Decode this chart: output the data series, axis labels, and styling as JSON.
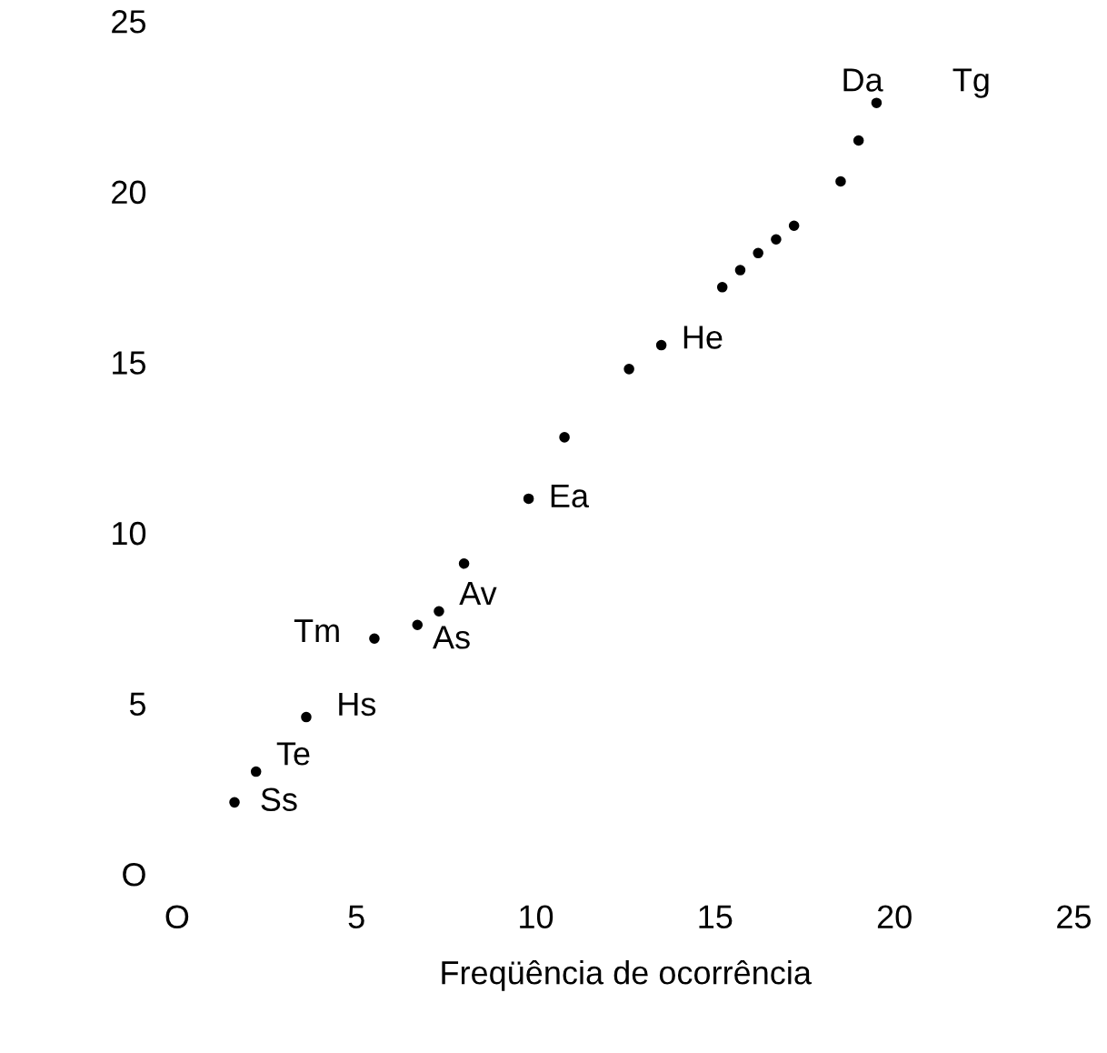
{
  "chart_data": {
    "type": "scatter",
    "xlabel": "Freqüência de ocorrência",
    "xlim": [
      0,
      25
    ],
    "ylim": [
      0,
      25
    ],
    "xticks": [
      {
        "value": 0,
        "label": "O"
      },
      5,
      10,
      15,
      20,
      25
    ],
    "yticks": [
      {
        "value": 0,
        "label": "O"
      },
      5,
      10,
      15,
      20,
      25
    ],
    "grid": false,
    "marker": "circle",
    "series": [
      {
        "color": "#000000",
        "x": [
          1.6,
          2.2,
          3.6,
          5.5,
          6.7,
          7.3,
          8.0,
          9.8,
          10.8,
          12.6,
          13.5,
          15.2,
          15.7,
          16.2,
          16.7,
          17.2,
          18.5,
          19.0,
          19.5
        ],
        "values": [
          2.1,
          3.0,
          4.6,
          6.9,
          7.3,
          7.7,
          9.1,
          11.0,
          12.8,
          14.8,
          15.5,
          17.2,
          17.7,
          18.2,
          18.6,
          19.0,
          20.3,
          21.5,
          22.6
        ]
      }
    ],
    "annotations": [
      {
        "text": "Ss",
        "x": 1.6,
        "y": 2.1
      },
      {
        "text": "Te",
        "x": 2.2,
        "y": 3.0
      },
      {
        "text": "Hs",
        "x": 3.6,
        "y": 4.6
      },
      {
        "text": "Tm",
        "x": 5.5,
        "y": 6.9
      },
      {
        "text": "As",
        "x": 6.7,
        "y": 7.3
      },
      {
        "text": "Av",
        "x": 7.3,
        "y": 7.7
      },
      {
        "text": "Ea",
        "x": 9.8,
        "y": 11.0
      },
      {
        "text": "He",
        "x": 13.5,
        "y": 15.5
      },
      {
        "text": "Da",
        "x": 19.5,
        "y": 22.6
      },
      {
        "text": "Tg",
        "x": 19.5,
        "y": 22.6
      }
    ]
  }
}
